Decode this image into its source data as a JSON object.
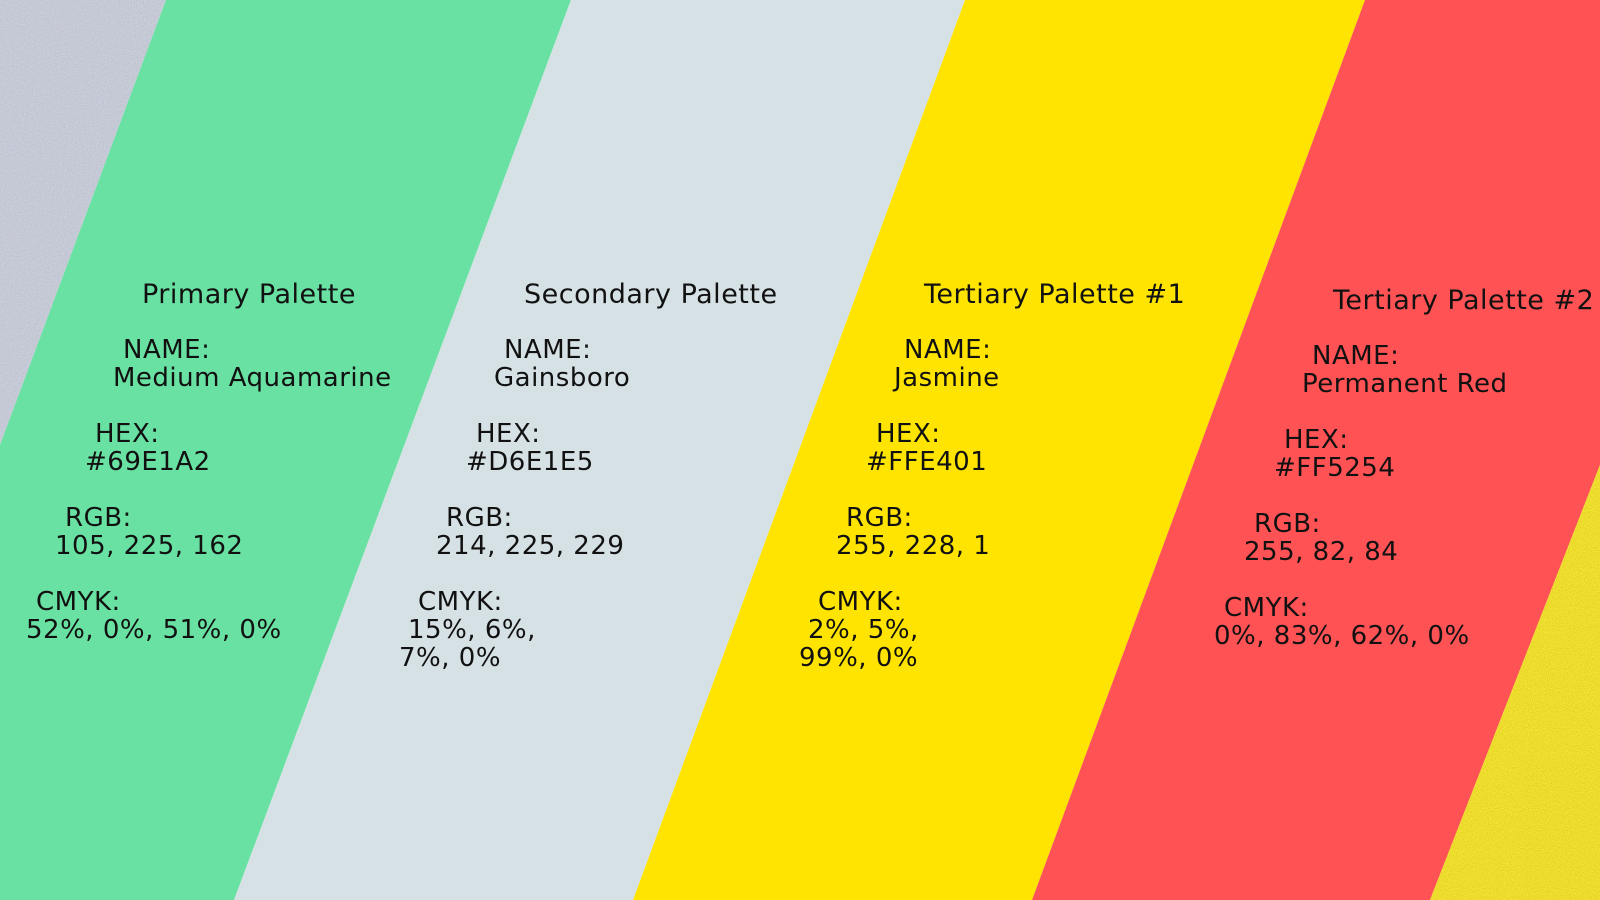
{
  "palettes": [
    {
      "title": "Primary Palette",
      "name_label": "NAME:",
      "name": "Medium Aquamarine",
      "hex_label": "HEX:",
      "hex": "#69E1A2",
      "rgb_label": "RGB:",
      "rgb": "105, 225, 162",
      "cmyk_label": "CMYK:",
      "cmyk_line1": "52%, 0%, 51%, 0%",
      "cmyk_line2": "",
      "color": "#69E1A2"
    },
    {
      "title": "Secondary Palette",
      "name_label": "NAME:",
      "name": "Gainsboro",
      "hex_label": "HEX:",
      "hex": "#D6E1E5",
      "rgb_label": "RGB:",
      "rgb": "214, 225, 229",
      "cmyk_label": "CMYK:",
      "cmyk_line1": "15%, 6%,",
      "cmyk_line2": "7%, 0%",
      "color": "#D6E1E5"
    },
    {
      "title": "Tertiary Palette #1",
      "name_label": "NAME:",
      "name": "Jasmine",
      "hex_label": "HEX:",
      "hex": "#FFE401",
      "rgb_label": "RGB:",
      "rgb": "255, 228, 1",
      "cmyk_label": "CMYK:",
      "cmyk_line1": "2%, 5%,",
      "cmyk_line2": "99%, 0%",
      "color": "#FFE401"
    },
    {
      "title": "Tertiary Palette #2",
      "name_label": "NAME:",
      "name": "Permanent Red",
      "hex_label": "HEX:",
      "hex": "#FF5254",
      "rgb_label": "RGB:",
      "rgb": "255, 82, 84",
      "cmyk_label": "CMYK:",
      "cmyk_line1": "0%, 83%, 62%, 0%",
      "cmyk_line2": "",
      "color": "#FF5254"
    }
  ],
  "decor": {
    "left_noise_color": "#c9cfe0",
    "right_noise_color": "#e6d21a"
  }
}
